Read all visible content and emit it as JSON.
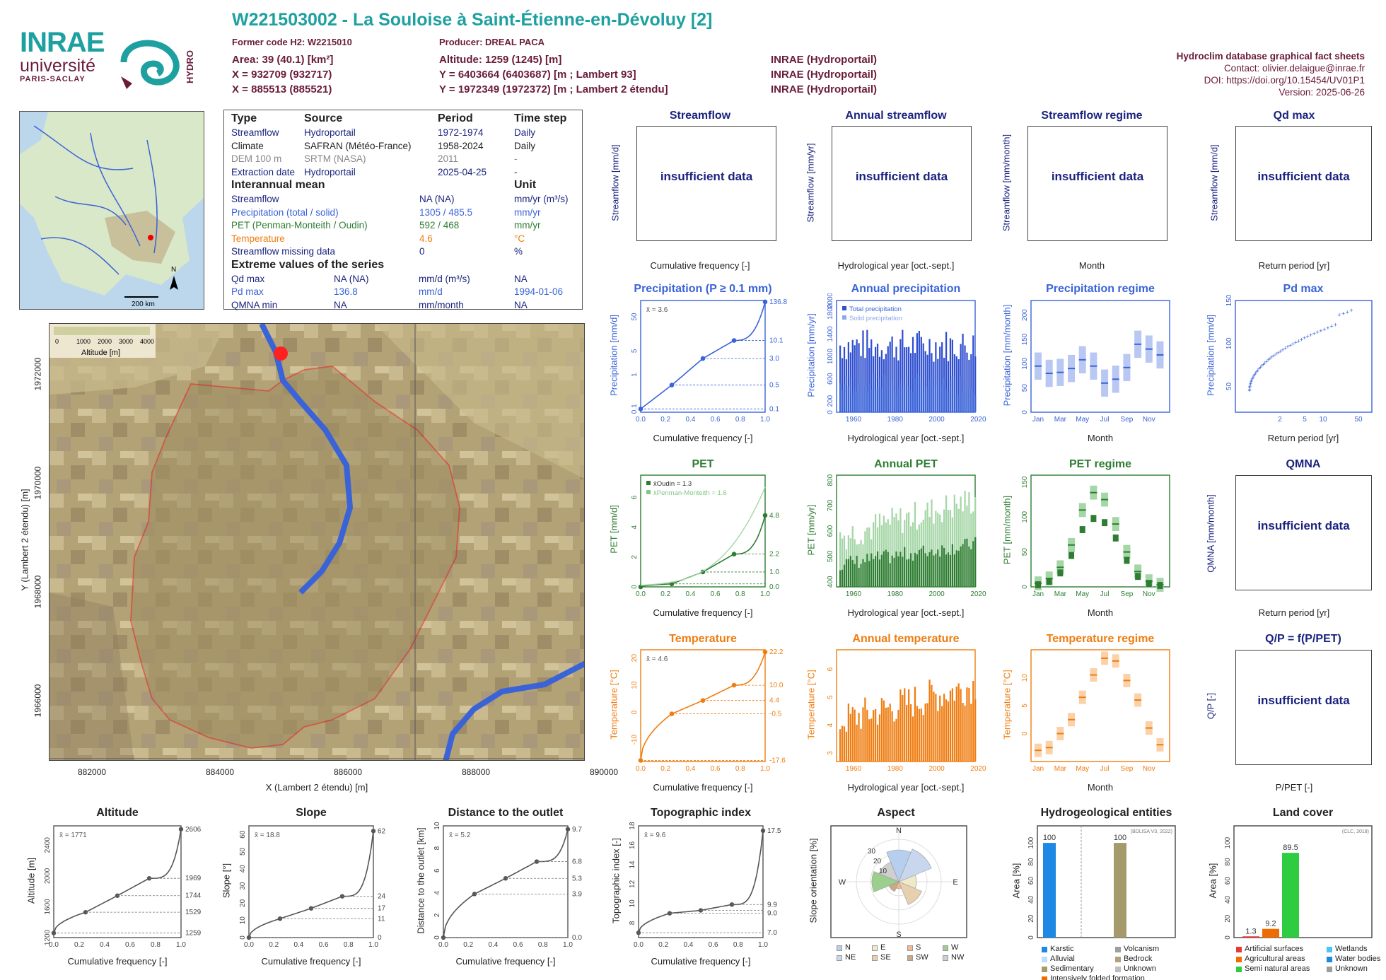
{
  "header": {
    "title": "W221503002 - La Souloise à Saint-Étienne-en-Dévoluy [2]",
    "former_code": "Former code H2: W2215010",
    "producer": "Producer: DREAL PACA",
    "area": "Area: 39 (40.1) [km²]",
    "altitude": "Altitude: 1259 (1245) [m]",
    "x93": "X = 932709 (932717)",
    "y93": "Y = 6403664 (6403687) [m ; Lambert 93]",
    "x2": "X = 885513 (885521)",
    "y2": "Y = 1972349 (1972372) [m ; Lambert 2 étendu]",
    "src1": "INRAE (Hydroportail)",
    "src2": "INRAE (Hydroportail)",
    "src3": "INRAE (Hydroportail)",
    "db_title": "Hydroclim database graphical fact sheets",
    "contact": "Contact: olivier.delaigue@inrae.fr",
    "doi": "DOI: https://doi.org/10.15454/UV01P1",
    "version": "Version: 2025-06-26"
  },
  "logos": {
    "inrae": "INRAE",
    "universite": "université",
    "paris": "PARIS-SACLAY",
    "hydro": "HYDRO"
  },
  "minimap": {
    "scale": "200 km",
    "north": "N"
  },
  "info_table": {
    "head": [
      "Type",
      "Source",
      "Period",
      "Time step"
    ],
    "rows": [
      [
        "Streamflow",
        "Hydroportail",
        "1972-1974",
        "Daily"
      ],
      [
        "Climate",
        "SAFRAN (Météo-France)",
        "1958-2024",
        "Daily"
      ],
      [
        "DEM 100 m",
        "SRTM (NASA)",
        "2011",
        "-"
      ],
      [
        "Extraction date",
        "Hydroportail",
        "2025-04-25",
        "-"
      ]
    ],
    "interannual_title": "Interannual mean",
    "unit_title": "Unit",
    "interannual": [
      [
        "Streamflow",
        "NA (NA)",
        "mm/yr (m³/s)"
      ],
      [
        "Precipitation (total / solid)",
        "1305 / 485.5",
        "mm/yr"
      ],
      [
        "PET (Penman-Monteith / Oudin)",
        "592 / 468",
        "mm/yr"
      ],
      [
        "Temperature",
        "4.6",
        "°C"
      ],
      [
        "Streamflow missing data",
        "0",
        "%"
      ]
    ],
    "extreme_title": "Extreme values of the series",
    "extreme": [
      [
        "Qd max",
        "NA (NA)",
        "mm/d (m³/s)",
        "NA"
      ],
      [
        "Pd max",
        "136.8",
        "mm/d",
        "1994-01-06"
      ],
      [
        "QMNA min",
        "NA",
        "mm/month",
        "NA"
      ]
    ]
  },
  "catchment_map": {
    "legend_ticks": [
      "0",
      "1000",
      "2000",
      "3000",
      "4000"
    ],
    "legend_title": "Altitude [m]",
    "xticks": [
      "882000",
      "884000",
      "886000",
      "888000",
      "890000"
    ],
    "yticks": [
      "1972000",
      "1970000",
      "1968000",
      "1966000"
    ],
    "xlabel": "X (Lambert 2 étendu) [m]",
    "ylabel": "Y (Lambert 2 étendu) [m]"
  },
  "panels": {
    "insufficient": "insufficient data",
    "streamflow": {
      "title": "Streamflow",
      "ylabel": "Streamflow [mm/d]",
      "xlabel": "Cumulative frequency [-]"
    },
    "annual_streamflow": {
      "title": "Annual streamflow",
      "ylabel": "Streamflow [mm/yr]",
      "xlabel": "Hydrological year [oct.-sept.]"
    },
    "streamflow_regime": {
      "title": "Streamflow regime",
      "ylabel": "Streamflow [mm/month]",
      "xlabel": "Month"
    },
    "qd_max": {
      "title": "Qd max",
      "ylabel": "Streamflow [mm/d]",
      "xlabel": "Return period [yr]"
    },
    "precip": {
      "title": "Precipitation (P ≥ 0.1 mm)",
      "ylabel": "Precipitation [mm/d]",
      "xlabel": "Cumulative frequency [-]",
      "mean": "x̄ = 3.6"
    },
    "annual_precip": {
      "title": "Annual precipitation",
      "ylabel": "Precipitation [mm/yr]",
      "xlabel": "Hydrological year [oct.-sept.]",
      "legend": [
        "Total precipitation",
        "Solid precipitation"
      ]
    },
    "precip_regime": {
      "title": "Precipitation regime",
      "ylabel": "Precipitation [mm/month]",
      "xlabel": "Month"
    },
    "pd_max": {
      "title": "Pd max",
      "ylabel": "Precipitation [mm/d]",
      "xlabel": "Return period [yr]"
    },
    "pet": {
      "title": "PET",
      "ylabel": "PET [mm/d]",
      "xlabel": "Cumulative frequency [-]",
      "leg1": "x̄Oudin = 1.3",
      "leg2": "x̄Penman-Monteith = 1.6"
    },
    "annual_pet": {
      "title": "Annual PET",
      "ylabel": "PET [mm/yr]",
      "xlabel": "Hydrological year [oct.-sept.]"
    },
    "pet_regime": {
      "title": "PET regime",
      "ylabel": "PET [mm/month]",
      "xlabel": "Month"
    },
    "qmna": {
      "title": "QMNA",
      "ylabel": "QMNA [mm/month]",
      "xlabel": "Return period [yr]"
    },
    "temp": {
      "title": "Temperature",
      "ylabel": "Temperature [°C]",
      "xlabel": "Cumulative frequency [-]",
      "mean": "x̄ = 4.6"
    },
    "annual_temp": {
      "title": "Annual temperature",
      "ylabel": "Temperature [°C]",
      "xlabel": "Hydrological year [oct.-sept.]"
    },
    "temp_regime": {
      "title": "Temperature regime",
      "ylabel": "Temperature [°C]",
      "xlabel": "Month"
    },
    "qp": {
      "title": "Q/P = f(P/PET)",
      "ylabel": "Q/P [-]",
      "xlabel": "P/PET [-]"
    },
    "altitude": {
      "title": "Altitude",
      "ylabel": "Altitude [m]",
      "xlabel": "Cumulative frequency [-]",
      "mean": "x̄ = 1771"
    },
    "slope": {
      "title": "Slope",
      "ylabel": "Slope [°]",
      "xlabel": "Cumulative frequency [-]",
      "mean": "x̄ = 18.8"
    },
    "distance": {
      "title": "Distance to the outlet",
      "ylabel": "Distance to the outlet [km]",
      "xlabel": "Cumulative frequency [-]",
      "mean": "x̄ = 5.2"
    },
    "topo": {
      "title": "Topographic index",
      "ylabel": "Topographic index [-]",
      "xlabel": "Cumulative frequency [-]",
      "mean": "x̄ = 9.6"
    },
    "aspect": {
      "title": "Aspect",
      "ylabel": "Slope orientation [%]",
      "legend": [
        "N",
        "E",
        "S",
        "W",
        "NE",
        "SE",
        "SW",
        "NW"
      ]
    },
    "hydrogeo": {
      "title": "Hydrogeological entities",
      "ylabel": "Area [%]",
      "source": "(BDLISA V3, 2022)",
      "legend": [
        "Karstic",
        "Volcanism",
        "Alluvial",
        "Bedrock",
        "Sedimentary",
        "Unknown",
        "Intensively folded formation"
      ]
    },
    "landcover": {
      "title": "Land cover",
      "ylabel": "Area [%]",
      "source": "(CLC, 2018)",
      "legend": [
        "Artificial surfaces",
        "Wetlands",
        "Agricultural areas",
        "Water bodies",
        "Semi natural areas",
        "Unknown"
      ]
    }
  },
  "chart_data": [
    {
      "type": "line",
      "title": "Precipitation (P ≥ 0.1 mm)",
      "xlabel": "Cumulative frequency [-]",
      "ylabel": "Precipitation [mm/d]",
      "y_scale": "log",
      "x": [
        0,
        0.25,
        0.5,
        0.75,
        1
      ],
      "y": [
        0.1,
        0.5,
        3.0,
        10.1,
        136.8
      ],
      "right_labels": [
        "136.8",
        "10.1",
        "3.0",
        "0.5",
        "0.1"
      ],
      "xticks": [
        "0.0",
        "0.2",
        "0.4",
        "0.6",
        "0.8",
        "1.0"
      ],
      "yticks": [
        "0.1",
        "1",
        "5",
        "50"
      ]
    },
    {
      "type": "bar",
      "title": "Annual precipitation",
      "legend": [
        "Total precipitation",
        "Solid precipitation"
      ],
      "xticks": [
        "1960",
        "1980",
        "2000",
        "2020"
      ],
      "yticks": [
        "0",
        "200",
        "600",
        "1000",
        "1400",
        "1800",
        "2000"
      ]
    },
    {
      "type": "box",
      "title": "Precipitation regime",
      "xticks": [
        "Jan",
        "Mar",
        "May",
        "Jul",
        "Sep",
        "Nov"
      ],
      "yticks": [
        "0",
        "50",
        "100",
        "150",
        "200"
      ],
      "median": [
        95,
        80,
        82,
        90,
        108,
        95,
        60,
        68,
        92,
        140,
        130,
        118
      ]
    },
    {
      "type": "scatter",
      "title": "Pd max",
      "xticks": [
        "2",
        "5",
        "10",
        "50"
      ],
      "yticks": [
        "50",
        "100",
        "150"
      ],
      "xlabel": "Return period [yr]"
    },
    {
      "type": "line",
      "title": "PET",
      "right_labels": [
        "4.8",
        "2.2",
        "1.0",
        "0.0"
      ],
      "xticks": [
        "0.0",
        "0.2",
        "0.4",
        "0.6",
        "0.8",
        "1.0"
      ],
      "yticks": [
        "0",
        "2",
        "4",
        "6"
      ]
    },
    {
      "type": "bar",
      "title": "Annual PET",
      "xticks": [
        "1960",
        "1980",
        "2000",
        "2020"
      ],
      "yticks": [
        "400",
        "500",
        "600",
        "700",
        "800"
      ]
    },
    {
      "type": "box",
      "title": "PET regime",
      "xticks": [
        "Jan",
        "Mar",
        "May",
        "Jul",
        "Sep",
        "Nov"
      ],
      "yticks": [
        "0",
        "50",
        "100",
        "150"
      ],
      "oudin": [
        3,
        8,
        20,
        45,
        82,
        98,
        92,
        70,
        38,
        15,
        5,
        2
      ],
      "pm": [
        5,
        12,
        28,
        60,
        110,
        135,
        125,
        90,
        50,
        22,
        8,
        3
      ]
    },
    {
      "type": "line",
      "title": "Temperature",
      "right_labels": [
        "22.2",
        "10.0",
        "4.4",
        "-0.5",
        "-17.6"
      ],
      "xticks": [
        "0.0",
        "0.2",
        "0.4",
        "0.6",
        "0.8",
        "1.0"
      ],
      "yticks": [
        "-10",
        "0",
        "10",
        "20"
      ]
    },
    {
      "type": "bar",
      "title": "Annual temperature",
      "xticks": [
        "1960",
        "1980",
        "2000",
        "2020"
      ],
      "yticks": [
        "3",
        "4",
        "5",
        "6"
      ]
    },
    {
      "type": "box",
      "title": "Temperature regime",
      "xticks": [
        "Jan",
        "Mar",
        "May",
        "Jul",
        "Sep",
        "Nov"
      ],
      "yticks": [
        "0",
        "5",
        "10"
      ],
      "median": [
        -3,
        -2.5,
        0,
        2.5,
        6.5,
        10.5,
        13.5,
        13,
        9.5,
        6,
        1,
        -2
      ]
    },
    {
      "type": "line",
      "title": "Altitude",
      "right_labels": [
        "2606",
        "1969",
        "1744",
        "1529",
        "1259"
      ],
      "yticks": [
        "1200",
        "1600",
        "2000",
        "2400"
      ],
      "xticks": [
        "0.0",
        "0.2",
        "0.4",
        "0.6",
        "0.8",
        "1.0"
      ],
      "x": [
        0,
        0.25,
        0.5,
        0.75,
        1
      ],
      "y": [
        1259,
        1529,
        1744,
        1969,
        2606
      ]
    },
    {
      "type": "line",
      "title": "Slope",
      "right_labels": [
        "62",
        "24",
        "17",
        "11",
        "0"
      ],
      "yticks": [
        "0",
        "10",
        "20",
        "30",
        "40",
        "50",
        "60"
      ],
      "xticks": [
        "0.0",
        "0.2",
        "0.4",
        "0.6",
        "0.8",
        "1.0"
      ],
      "x": [
        0,
        0.25,
        0.5,
        0.75,
        1
      ],
      "y": [
        0,
        11,
        17,
        24,
        62
      ]
    },
    {
      "type": "line",
      "title": "Distance to the outlet",
      "right_labels": [
        "9.7",
        "6.8",
        "5.3",
        "3.9",
        "0.0"
      ],
      "yticks": [
        "0",
        "2",
        "4",
        "6",
        "8",
        "10"
      ],
      "xticks": [
        "0.0",
        "0.2",
        "0.4",
        "0.6",
        "0.8",
        "1.0"
      ],
      "x": [
        0,
        0.25,
        0.5,
        0.75,
        1
      ],
      "y": [
        0,
        3.9,
        5.3,
        6.8,
        9.7
      ]
    },
    {
      "type": "line",
      "title": "Topographic index",
      "right_labels": [
        "17.5",
        "9.9",
        "9.0",
        "7.0"
      ],
      "yticks": [
        "8",
        "10",
        "12",
        "14",
        "16",
        "18"
      ],
      "xticks": [
        "0.0",
        "0.2",
        "0.4",
        "0.6",
        "0.8",
        "1.0"
      ],
      "x": [
        0,
        0.25,
        0.5,
        0.75,
        1
      ],
      "y": [
        7.0,
        9.0,
        9.3,
        9.9,
        17.5
      ]
    },
    {
      "type": "pie",
      "title": "Aspect",
      "rings": [
        "10",
        "20",
        "30"
      ],
      "dirs": [
        "N",
        "E",
        "S",
        "W"
      ]
    },
    {
      "type": "bar",
      "title": "Hydrogeological entities",
      "values": [
        100,
        100
      ],
      "yticks": [
        "0",
        "20",
        "40",
        "60",
        "80",
        "100"
      ]
    },
    {
      "type": "bar",
      "title": "Land cover",
      "values": [
        1.3,
        9.2,
        89.5
      ],
      "labels": [
        "1.3",
        "9.2",
        "89.5"
      ],
      "yticks": [
        "0",
        "20",
        "40",
        "60",
        "80",
        "100"
      ]
    }
  ]
}
